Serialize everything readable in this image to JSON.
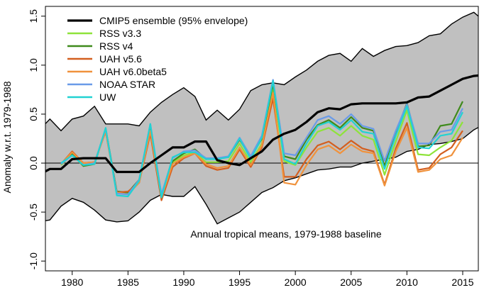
{
  "chart_data": {
    "type": "line",
    "ylabel": "Anomaly w.r.t. 1979-1988",
    "xlabel": "",
    "xlim": [
      1977.6,
      2016.4
    ],
    "ylim": [
      -1.1,
      1.6
    ],
    "xticks": [
      1980,
      1985,
      1990,
      1995,
      2000,
      2005,
      2010,
      2015
    ],
    "yticks": [
      -1.0,
      -0.5,
      0.0,
      0.5,
      1.0,
      1.5
    ],
    "ytick_labels": [
      "-1.0",
      "-0.5",
      "0.0",
      "0.5",
      "1.0",
      "1.5"
    ],
    "annotation": "Annual tropical means, 1979-1988 baseline",
    "zero_line": true,
    "legend_position": "top-left",
    "envelope": {
      "name": "CMIP5 ensemble (95% envelope)",
      "fill_color": "#c0c0c0",
      "x": [
        1977,
        1978,
        1979,
        1980,
        1981,
        1982,
        1983,
        1984,
        1985,
        1986,
        1987,
        1988,
        1989,
        1990,
        1991,
        1992,
        1993,
        1994,
        1995,
        1996,
        1997,
        1998,
        1999,
        2000,
        2001,
        2002,
        2003,
        2004,
        2005,
        2006,
        2007,
        2008,
        2009,
        2010,
        2011,
        2012,
        2013,
        2014,
        2015,
        2016,
        2017
      ],
      "upper": [
        0.33,
        0.45,
        0.33,
        0.45,
        0.48,
        0.58,
        0.4,
        0.4,
        0.4,
        0.38,
        0.52,
        0.62,
        0.7,
        0.77,
        0.68,
        0.44,
        0.54,
        0.44,
        0.55,
        0.74,
        0.8,
        0.82,
        0.8,
        0.88,
        0.95,
        1.04,
        1.1,
        1.12,
        1.04,
        1.17,
        1.09,
        1.15,
        1.19,
        1.2,
        1.23,
        1.3,
        1.32,
        1.42,
        1.49,
        1.54,
        1.44
      ],
      "lower": [
        -0.6,
        -0.58,
        -0.44,
        -0.36,
        -0.4,
        -0.48,
        -0.58,
        -0.6,
        -0.59,
        -0.5,
        -0.38,
        -0.32,
        -0.34,
        -0.34,
        -0.24,
        -0.42,
        -0.62,
        -0.56,
        -0.5,
        -0.4,
        -0.3,
        -0.25,
        -0.18,
        -0.15,
        -0.11,
        -0.07,
        -0.06,
        -0.04,
        -0.04,
        0.0,
        0.02,
        0.04,
        0.06,
        0.12,
        0.14,
        0.19,
        0.2,
        0.22,
        0.25,
        0.34,
        0.4
      ]
    },
    "series": [
      {
        "name": "CMIP5 ensemble (95% envelope)",
        "color": "#000000",
        "width": 3.2,
        "x": [
          1977,
          1978,
          1979,
          1980,
          1981,
          1982,
          1983,
          1984,
          1985,
          1986,
          1987,
          1988,
          1989,
          1990,
          1991,
          1992,
          1993,
          1994,
          1995,
          1996,
          1997,
          1998,
          1999,
          2000,
          2001,
          2002,
          2003,
          2004,
          2005,
          2006,
          2007,
          2008,
          2009,
          2010,
          2011,
          2012,
          2013,
          2014,
          2015,
          2016,
          2017
        ],
        "y": [
          -0.12,
          -0.06,
          -0.06,
          0.04,
          0.05,
          0.05,
          0.05,
          -0.09,
          -0.09,
          -0.09,
          0.0,
          0.08,
          0.16,
          0.16,
          0.22,
          0.22,
          0.03,
          0.0,
          -0.02,
          0.05,
          0.12,
          0.24,
          0.3,
          0.34,
          0.42,
          0.52,
          0.56,
          0.55,
          0.6,
          0.61,
          0.61,
          0.61,
          0.61,
          0.62,
          0.67,
          0.68,
          0.74,
          0.8,
          0.86,
          0.89,
          0.9
        ]
      },
      {
        "name": "RSS v3.3",
        "color": "#8ee33a",
        "width": 2.2,
        "x": [
          1979,
          1980,
          1981,
          1982,
          1983,
          1984,
          1985,
          1986,
          1987,
          1988,
          1989,
          1990,
          1991,
          1992,
          1993,
          1994,
          1995,
          1996,
          1997,
          1998,
          1999,
          2000,
          2001,
          2002,
          2003,
          2004,
          2005,
          2006,
          2007,
          2008,
          2009,
          2010,
          2011,
          2012,
          2013,
          2014,
          2015
        ],
        "y": [
          -0.02,
          0.09,
          -0.03,
          0.0,
          0.34,
          -0.3,
          -0.3,
          -0.18,
          0.36,
          -0.34,
          0.01,
          0.08,
          0.11,
          0.01,
          0.01,
          0.02,
          0.2,
          0.01,
          0.2,
          0.77,
          0.02,
          -0.02,
          0.16,
          0.32,
          0.36,
          0.28,
          0.38,
          0.28,
          0.24,
          -0.12,
          0.22,
          0.54,
          0.09,
          0.08,
          0.16,
          0.23,
          0.42
        ]
      },
      {
        "name": "RSS v4",
        "color": "#3f8a1c",
        "width": 2.2,
        "x": [
          1979,
          1980,
          1981,
          1982,
          1983,
          1984,
          1985,
          1986,
          1987,
          1988,
          1989,
          1990,
          1991,
          1992,
          1993,
          1994,
          1995,
          1996,
          1997,
          1998,
          1999,
          2000,
          2001,
          2002,
          2003,
          2004,
          2005,
          2006,
          2007,
          2008,
          2009,
          2010,
          2011,
          2012,
          2013,
          2014,
          2015
        ],
        "y": [
          -0.01,
          0.1,
          -0.03,
          -0.01,
          0.35,
          -0.29,
          -0.3,
          -0.17,
          0.38,
          -0.33,
          0.02,
          0.1,
          0.14,
          0.04,
          0.05,
          0.06,
          0.24,
          0.06,
          0.25,
          0.81,
          0.07,
          0.04,
          0.24,
          0.39,
          0.44,
          0.36,
          0.47,
          0.36,
          0.33,
          -0.03,
          0.31,
          0.61,
          0.17,
          0.18,
          0.38,
          0.4,
          0.63
        ]
      },
      {
        "name": "UAH v5.6",
        "color": "#d35f1f",
        "width": 2.2,
        "x": [
          1979,
          1980,
          1981,
          1982,
          1983,
          1984,
          1985,
          1986,
          1987,
          1988,
          1989,
          1990,
          1991,
          1992,
          1993,
          1994,
          1995,
          1996,
          1997,
          1998,
          1999,
          2000,
          2001,
          2002,
          2003,
          2004,
          2005,
          2006,
          2007,
          2008,
          2009,
          2010,
          2011,
          2012,
          2013,
          2014,
          2015
        ],
        "y": [
          -0.01,
          0.12,
          0.0,
          0.01,
          0.32,
          -0.3,
          -0.29,
          -0.2,
          0.3,
          -0.38,
          -0.04,
          0.05,
          0.1,
          -0.03,
          -0.07,
          -0.05,
          0.14,
          -0.04,
          0.16,
          0.66,
          -0.14,
          -0.14,
          0.04,
          0.18,
          0.22,
          0.14,
          0.23,
          0.15,
          0.12,
          -0.22,
          0.15,
          0.41,
          -0.07,
          -0.05,
          0.09,
          0.16,
          0.33
        ]
      },
      {
        "name": "UAH v6.0beta5",
        "color": "#f0923c",
        "width": 2.2,
        "x": [
          1979,
          1980,
          1981,
          1982,
          1983,
          1984,
          1985,
          1986,
          1987,
          1988,
          1989,
          1990,
          1991,
          1992,
          1993,
          1994,
          1995,
          1996,
          1997,
          1998,
          1999,
          2000,
          2001,
          2002,
          2003,
          2004,
          2005,
          2006,
          2007,
          2008,
          2009,
          2010,
          2011,
          2012,
          2013,
          2014,
          2015
        ],
        "y": [
          -0.01,
          0.11,
          0.0,
          0.01,
          0.32,
          -0.3,
          -0.32,
          -0.2,
          0.33,
          -0.35,
          -0.01,
          0.06,
          0.1,
          -0.01,
          -0.05,
          -0.03,
          0.16,
          -0.02,
          0.18,
          0.72,
          -0.2,
          -0.22,
          -0.02,
          0.14,
          0.18,
          0.1,
          0.19,
          0.12,
          0.1,
          -0.23,
          0.12,
          0.36,
          -0.09,
          -0.07,
          0.04,
          0.08,
          0.26
        ]
      },
      {
        "name": "NOAA STAR",
        "color": "#6a9be8",
        "width": 2.2,
        "x": [
          1979,
          1980,
          1981,
          1982,
          1983,
          1984,
          1985,
          1986,
          1987,
          1988,
          1989,
          1990,
          1991,
          1992,
          1993,
          1994,
          1995,
          1996,
          1997,
          1998,
          1999,
          2000,
          2001,
          2002,
          2003,
          2004,
          2005,
          2006,
          2007,
          2008,
          2009,
          2010,
          2011,
          2012,
          2013,
          2014,
          2015
        ],
        "y": [
          -0.01,
          0.08,
          -0.02,
          0.0,
          0.35,
          -0.31,
          -0.32,
          -0.17,
          0.4,
          -0.32,
          0.05,
          0.12,
          0.13,
          0.05,
          0.05,
          0.07,
          0.26,
          0.07,
          0.28,
          0.85,
          0.1,
          0.08,
          0.26,
          0.44,
          0.48,
          0.4,
          0.5,
          0.38,
          0.35,
          0.02,
          0.33,
          0.6,
          0.2,
          0.2,
          0.32,
          0.34,
          0.56
        ]
      },
      {
        "name": "UW",
        "color": "#22d2d2",
        "width": 2.2,
        "x": [
          1979,
          1980,
          1981,
          1982,
          1983,
          1984,
          1985,
          1986,
          1987,
          1988,
          1989,
          1990,
          1991,
          1992,
          1993,
          1994,
          1995,
          1996,
          1997,
          1998,
          1999,
          2000,
          2001,
          2002,
          2003,
          2004,
          2005,
          2006,
          2007,
          2008,
          2009,
          2010,
          2011,
          2012,
          2013,
          2014,
          2015
        ],
        "y": [
          0.0,
          0.08,
          -0.02,
          -0.01,
          0.36,
          -0.33,
          -0.34,
          -0.18,
          0.4,
          -0.35,
          0.06,
          0.11,
          0.11,
          0.04,
          0.04,
          0.06,
          0.25,
          0.04,
          0.26,
          0.84,
          0.04,
          -0.01,
          0.2,
          0.38,
          0.42,
          0.34,
          0.44,
          0.32,
          0.3,
          -0.06,
          0.28,
          0.58,
          0.16,
          0.15,
          0.28,
          0.3,
          0.52
        ]
      }
    ]
  }
}
